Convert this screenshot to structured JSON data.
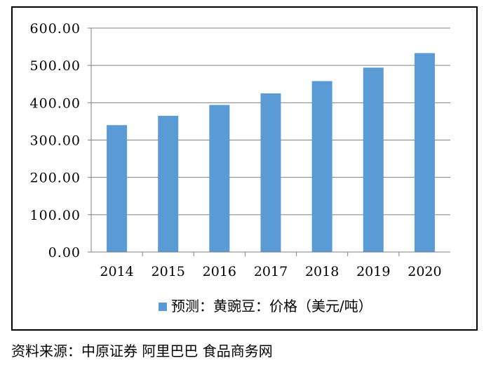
{
  "chart_data": {
    "type": "bar",
    "categories": [
      "2014",
      "2015",
      "2016",
      "2017",
      "2018",
      "2019",
      "2020"
    ],
    "series": [
      {
        "name": "预测：黄豌豆：价格（美元/吨）",
        "values": [
          340,
          365,
          394,
          425,
          458,
          494,
          533
        ],
        "color": "#5b9bd5"
      }
    ],
    "ylim": [
      0,
      600
    ],
    "yticks": [
      "0.00",
      "100.00",
      "200.00",
      "300.00",
      "400.00",
      "500.00",
      "600.00"
    ],
    "grid": true,
    "legend_position": "bottom",
    "gridline_color": "#808080"
  },
  "source_note": "资料来源：中原证券 阿里巴巴 食品商务网"
}
